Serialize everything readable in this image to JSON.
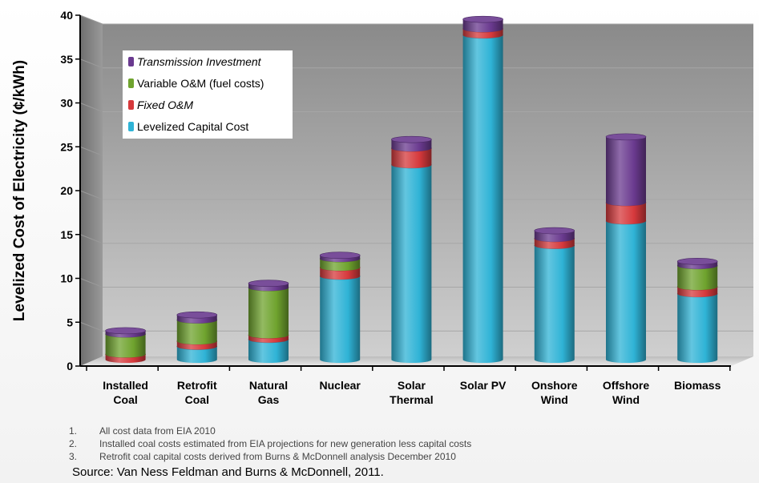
{
  "chart_data": {
    "type": "bar",
    "stacked": true,
    "ylabel": "Levelized Cost of Electricity (¢/kWh)",
    "ylim": [
      0,
      40
    ],
    "yticks": [
      "0",
      "5",
      "10",
      "15",
      "20",
      "25",
      "30",
      "35",
      "40"
    ],
    "categories": [
      [
        "Installed",
        "Coal"
      ],
      [
        "Retrofit",
        "Coal"
      ],
      [
        "Natural",
        "Gas"
      ],
      [
        "Nuclear"
      ],
      [
        "Solar",
        "Thermal"
      ],
      [
        "Solar PV"
      ],
      [
        "Onshore",
        "Wind"
      ],
      [
        "Offshore",
        "Wind"
      ],
      [
        "Biomass"
      ]
    ],
    "series": [
      {
        "name": "Levelized Capital Cost",
        "color": "#2fb3d6",
        "values": [
          0,
          1.5,
          2.3,
          9.5,
          22.2,
          37.0,
          13.0,
          15.8,
          7.5
        ]
      },
      {
        "name": "Fixed O&M",
        "color": "#d6393c",
        "values": [
          0.6,
          0.6,
          0.5,
          1.0,
          1.9,
          0.7,
          0.8,
          2.1,
          0.8
        ]
      },
      {
        "name": "Variable O&M (fuel costs)",
        "color": "#6fa32e",
        "values": [
          2.3,
          2.4,
          5.4,
          1.0,
          0,
          0,
          0,
          0,
          2.4
        ]
      },
      {
        "name": "Transmission Investment",
        "color": "#6a3a8f",
        "values": [
          0.4,
          0.6,
          0.5,
          0.4,
          1.0,
          1.1,
          0.9,
          7.5,
          0.5
        ]
      }
    ],
    "legend_position": "top-left",
    "grid": true
  },
  "legend": [
    {
      "label": "Transmission Investment",
      "color": "#6a3a8f",
      "italic": true
    },
    {
      "label": "Variable O&M (fuel costs)",
      "color": "#6fa32e",
      "italic": false
    },
    {
      "label": "Fixed O&M",
      "color": "#d6393c",
      "italic": true
    },
    {
      "label": "Levelized Capital Cost",
      "color": "#2fb3d6",
      "italic": false
    }
  ],
  "notes": [
    {
      "num": "1.",
      "text": "All cost data from EIA 2010"
    },
    {
      "num": "2.",
      "text": "Installed coal costs estimated from EIA projections for new generation less capital costs"
    },
    {
      "num": "3.",
      "text": "Retrofit coal capital costs derived from Burns & McDonnell analysis December  2010"
    }
  ],
  "source": "Source:  Van Ness Feldman and Burns & McDonnell, 2011."
}
